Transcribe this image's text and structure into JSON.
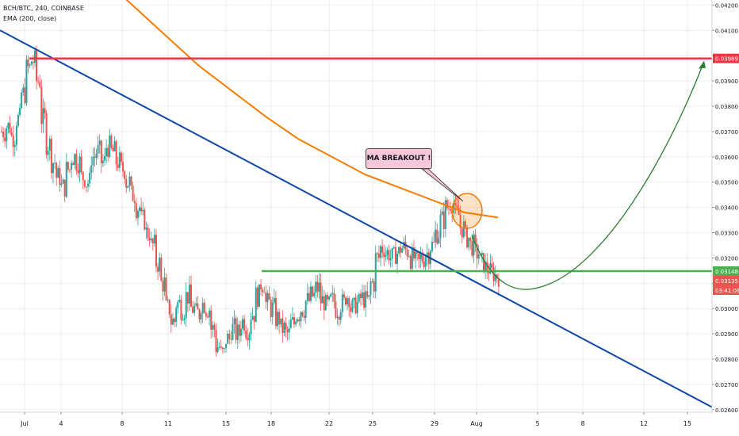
{
  "legend": {
    "symbol": "BCH/BTC, 240, COINBASE",
    "indicator": "EMA (200, close)"
  },
  "annotation": {
    "label": "MA BREAKOUT !"
  },
  "colors": {
    "price_up": "#26a69a",
    "price_down": "#ef5350",
    "ema": "#f57c00",
    "trendline": "#0d47a1",
    "resistance": "#f23645",
    "support": "#4caf50",
    "projection": "#2e7d32",
    "circle": "#f57c00",
    "grid": "#e0e3eb",
    "axis_text": "#131722"
  },
  "chart_data": {
    "type": "candlestick",
    "title": "",
    "xlabel": "",
    "ylabel": "",
    "ylim": [
      0.0259,
      0.0422
    ],
    "grid": true,
    "x_ticks": [
      "Jul",
      "4",
      "8",
      "11",
      "15",
      "18",
      "22",
      "25",
      "29",
      "Aug",
      "5",
      "8",
      "12",
      "15"
    ],
    "y_ticks": [
      "0.04200",
      "0.04100",
      "0.04000",
      "0.03900",
      "0.03800",
      "0.03700",
      "0.03600",
      "0.03500",
      "0.03400",
      "0.03300",
      "0.03200",
      "0.03100",
      "0.03000",
      "0.02900",
      "0.02800",
      "0.02700",
      "0.02600"
    ],
    "price_labels": [
      {
        "text": "0.03989",
        "value": 0.03989,
        "color": "#f23645"
      },
      {
        "text": "0.03148",
        "value": 0.03148,
        "color": "#4caf50"
      },
      {
        "text": "0.03135",
        "value": 0.03135,
        "color": "#ef5350"
      },
      {
        "text": "03:41:08",
        "value": 0.03108,
        "color": "#ef5350"
      }
    ],
    "levels": {
      "resistance": 0.03989,
      "support": 0.03148
    },
    "price_path": [
      0.037,
      0.0372,
      0.0368,
      0.0375,
      0.0385,
      0.0395,
      0.0398,
      0.039,
      0.0375,
      0.0365,
      0.0358,
      0.0352,
      0.0348,
      0.0355,
      0.036,
      0.0358,
      0.0352,
      0.035,
      0.036,
      0.0362,
      0.0358,
      0.0364,
      0.0362,
      0.0358,
      0.0355,
      0.035,
      0.0345,
      0.034,
      0.0335,
      0.033,
      0.0325,
      0.0318,
      0.031,
      0.03,
      0.0295,
      0.0302,
      0.03,
      0.0305,
      0.03,
      0.0298,
      0.0302,
      0.03,
      0.0292,
      0.0285,
      0.0282,
      0.0288,
      0.0292,
      0.029,
      0.0295,
      0.0292,
      0.0298,
      0.0305,
      0.031,
      0.0302,
      0.03,
      0.0296,
      0.0292,
      0.029,
      0.0294,
      0.0298,
      0.03,
      0.0303,
      0.0305,
      0.0308,
      0.0303,
      0.0301,
      0.0303,
      0.03,
      0.0302,
      0.0305,
      0.03,
      0.0302,
      0.0304,
      0.0303,
      0.031,
      0.032,
      0.0324,
      0.0322,
      0.032,
      0.0322,
      0.0324,
      0.0323,
      0.032,
      0.0318,
      0.032,
      0.0322,
      0.0325,
      0.033,
      0.0335,
      0.034,
      0.0342,
      0.0337,
      0.0332,
      0.0328,
      0.0325,
      0.0322,
      0.0318,
      0.0316,
      0.0314,
      0.0313
    ],
    "ema_path": [
      0.0432,
      0.042,
      0.0408,
      0.0396,
      0.0386,
      0.0376,
      0.0367,
      0.036,
      0.0353,
      0.0348,
      0.0343,
      0.0338,
      0.0336
    ],
    "trendline": {
      "start_value": 0.041,
      "end_value": 0.0261
    },
    "projection": {
      "trough": 0.0308,
      "target": 0.0398
    }
  }
}
